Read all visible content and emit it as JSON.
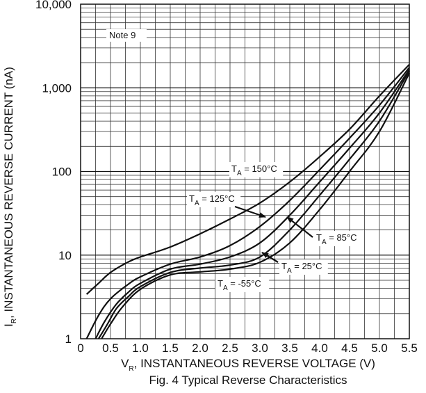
{
  "chart_data": {
    "type": "line",
    "title": "Fig. 4 Typical Reverse Characteristics",
    "xlabel": {
      "main": "V",
      "sub": "R",
      "rest": ", INSTANTANEOUS REVERSE VOLTAGE (V)"
    },
    "ylabel": {
      "main": "I",
      "sub": "R",
      "rest": ", INSTANTANEOUS REVERSE CURRENT (nA)"
    },
    "xlim": [
      0,
      5.5
    ],
    "ylim": [
      1,
      10000
    ],
    "yscale": "log",
    "grid": true,
    "x_ticks": [
      "0",
      "0.5",
      "1.0",
      "1.5",
      "2.0",
      "2.5",
      "3.0",
      "3.5",
      "4.0",
      "4.5",
      "5.0",
      "5.5"
    ],
    "y_ticks": [
      {
        "value": 1,
        "label": "1"
      },
      {
        "value": 10,
        "label": "10"
      },
      {
        "value": 100,
        "label": "100"
      },
      {
        "value": 1000,
        "label": "1,000"
      },
      {
        "value": 10000,
        "label": "10,000"
      }
    ],
    "note": "Note 9",
    "series": [
      {
        "name": "TA = 150°C",
        "label_main": "T",
        "label_sub": "A",
        "label_rest": " = 150°C",
        "x": [
          0.1,
          0.3,
          0.5,
          0.8,
          1.0,
          1.5,
          2.0,
          2.5,
          3.0,
          3.5,
          4.0,
          4.5,
          5.0,
          5.5
        ],
        "y": [
          3.4,
          4.6,
          6.2,
          8.3,
          9.5,
          12.5,
          18,
          27,
          42,
          75,
          150,
          320,
          800,
          1900
        ]
      },
      {
        "name": "TA = 125°C",
        "label_main": "T",
        "label_sub": "A",
        "label_rest": " = 125°C",
        "x": [
          0.1,
          0.3,
          0.5,
          0.8,
          1.0,
          1.5,
          2.0,
          2.5,
          3.0,
          3.5,
          4.0,
          4.5,
          5.0,
          5.5
        ],
        "y": [
          1.0,
          1.9,
          3.0,
          4.5,
          5.5,
          7.8,
          9.5,
          13,
          22,
          45,
          105,
          250,
          620,
          1750
        ]
      },
      {
        "name": "TA = 85°C",
        "label_main": "T",
        "label_sub": "A",
        "label_rest": " = 85°C",
        "x": [
          0.25,
          0.4,
          0.6,
          0.8,
          1.0,
          1.5,
          2.0,
          2.5,
          3.0,
          3.5,
          4.0,
          4.5,
          5.0,
          5.5
        ],
        "y": [
          1.0,
          1.6,
          2.6,
          3.6,
          4.6,
          6.8,
          7.8,
          9.5,
          14,
          30,
          75,
          190,
          500,
          1650
        ]
      },
      {
        "name": "TA = 25°C",
        "label_main": "T",
        "label_sub": "A",
        "label_rest": " = 25°C",
        "x": [
          0.3,
          0.45,
          0.6,
          0.8,
          1.0,
          1.5,
          2.0,
          2.5,
          3.0,
          3.5,
          4.0,
          4.5,
          5.0,
          5.5
        ],
        "y": [
          1.0,
          1.5,
          2.3,
          3.2,
          4.2,
          6.2,
          7.0,
          7.6,
          9.5,
          20,
          52,
          140,
          400,
          1600
        ]
      },
      {
        "name": "TA = -55°C",
        "label_main": "T",
        "label_sub": "A",
        "label_rest": " = -55°C",
        "x": [
          0.35,
          0.5,
          0.7,
          1.0,
          1.5,
          2.0,
          2.5,
          3.0,
          3.5,
          4.0,
          4.5,
          5.0,
          5.5
        ],
        "y": [
          1.0,
          1.5,
          2.4,
          3.9,
          5.8,
          6.3,
          6.8,
          8.2,
          14,
          35,
          100,
          300,
          1500
        ]
      }
    ]
  }
}
